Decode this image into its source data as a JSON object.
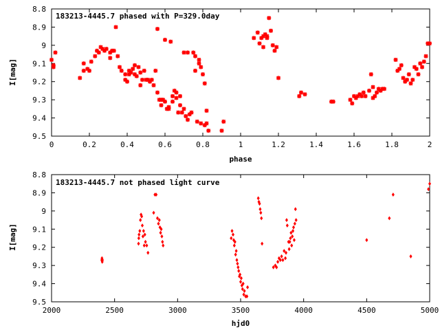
{
  "colors": {
    "points": "#ff0000",
    "frame": "#000000",
    "background": "#ffffff"
  },
  "chart_data": [
    {
      "type": "scatter",
      "title": "183213-4445.7 phased with P=329.0day",
      "xlabel": "phase",
      "ylabel": "I[mag]",
      "xlim": [
        0,
        2
      ],
      "ylim": [
        8.8,
        9.5
      ],
      "y_inverted": true,
      "grid": false,
      "marker": "star",
      "xticks": [
        "0",
        "0.2",
        "0.4",
        "0.6",
        "0.8",
        "1",
        "1.2",
        "1.4",
        "1.6",
        "1.8",
        "2"
      ],
      "yticks": [
        "8.8",
        "8.9",
        "9",
        "9.1",
        "9.2",
        "9.3",
        "9.4",
        "9.5"
      ],
      "points": [
        [
          0.0,
          9.08
        ],
        [
          0.01,
          9.12
        ],
        [
          0.01,
          9.11
        ],
        [
          0.02,
          9.04
        ],
        [
          0.15,
          9.18
        ],
        [
          0.17,
          9.1
        ],
        [
          0.17,
          9.14
        ],
        [
          0.19,
          9.13
        ],
        [
          0.2,
          9.14
        ],
        [
          0.21,
          9.09
        ],
        [
          0.23,
          9.06
        ],
        [
          0.24,
          9.03
        ],
        [
          0.25,
          9.04
        ],
        [
          0.26,
          9.01
        ],
        [
          0.27,
          9.02
        ],
        [
          0.28,
          9.03
        ],
        [
          0.29,
          9.02
        ],
        [
          0.31,
          9.04
        ],
        [
          0.31,
          9.07
        ],
        [
          0.32,
          9.03
        ],
        [
          0.33,
          9.03
        ],
        [
          0.34,
          8.9
        ],
        [
          0.35,
          9.06
        ],
        [
          0.36,
          9.12
        ],
        [
          0.37,
          9.14
        ],
        [
          0.39,
          9.16
        ],
        [
          0.39,
          9.19
        ],
        [
          0.4,
          9.2
        ],
        [
          0.41,
          9.16
        ],
        [
          0.41,
          9.14
        ],
        [
          0.42,
          9.15
        ],
        [
          0.43,
          9.13
        ],
        [
          0.44,
          9.16
        ],
        [
          0.44,
          9.11
        ],
        [
          0.45,
          9.17
        ],
        [
          0.46,
          9.12
        ],
        [
          0.47,
          9.22
        ],
        [
          0.47,
          9.15
        ],
        [
          0.48,
          9.19
        ],
        [
          0.49,
          9.14
        ],
        [
          0.5,
          9.19
        ],
        [
          0.51,
          9.19
        ],
        [
          0.52,
          9.2
        ],
        [
          0.53,
          9.19
        ],
        [
          0.54,
          9.22
        ],
        [
          0.55,
          9.14
        ],
        [
          0.56,
          8.91
        ],
        [
          0.56,
          9.26
        ],
        [
          0.57,
          9.3
        ],
        [
          0.58,
          9.33
        ],
        [
          0.58,
          9.3
        ],
        [
          0.59,
          9.3
        ],
        [
          0.6,
          8.97
        ],
        [
          0.6,
          9.31
        ],
        [
          0.61,
          9.35
        ],
        [
          0.62,
          9.34
        ],
        [
          0.62,
          9.35
        ],
        [
          0.63,
          8.98
        ],
        [
          0.64,
          9.28
        ],
        [
          0.64,
          9.31
        ],
        [
          0.65,
          9.25
        ],
        [
          0.66,
          9.29
        ],
        [
          0.66,
          9.26
        ],
        [
          0.67,
          9.37
        ],
        [
          0.68,
          9.28
        ],
        [
          0.68,
          9.33
        ],
        [
          0.69,
          9.37
        ],
        [
          0.7,
          9.04
        ],
        [
          0.7,
          9.35
        ],
        [
          0.71,
          9.39
        ],
        [
          0.72,
          9.04
        ],
        [
          0.72,
          9.41
        ],
        [
          0.73,
          9.38
        ],
        [
          0.74,
          9.37
        ],
        [
          0.75,
          9.04
        ],
        [
          0.76,
          9.14
        ],
        [
          0.76,
          9.06
        ],
        [
          0.77,
          9.42
        ],
        [
          0.78,
          9.08
        ],
        [
          0.78,
          9.1
        ],
        [
          0.79,
          9.43
        ],
        [
          0.79,
          9.12
        ],
        [
          0.8,
          9.16
        ],
        [
          0.81,
          9.21
        ],
        [
          0.81,
          9.44
        ],
        [
          0.82,
          9.36
        ],
        [
          0.82,
          9.43
        ],
        [
          0.83,
          9.47
        ],
        [
          0.9,
          9.47
        ],
        [
          0.91,
          9.42
        ],
        [
          1.07,
          8.96
        ],
        [
          1.09,
          8.93
        ],
        [
          1.1,
          8.99
        ],
        [
          1.11,
          8.96
        ],
        [
          1.12,
          8.95
        ],
        [
          1.12,
          9.01
        ],
        [
          1.13,
          8.94
        ],
        [
          1.14,
          8.95
        ],
        [
          1.14,
          8.96
        ],
        [
          1.15,
          8.85
        ],
        [
          1.16,
          8.92
        ],
        [
          1.17,
          9.0
        ],
        [
          1.18,
          9.03
        ],
        [
          1.19,
          9.01
        ],
        [
          1.2,
          9.18
        ],
        [
          1.31,
          9.28
        ],
        [
          1.32,
          9.26
        ],
        [
          1.34,
          9.27
        ],
        [
          1.48,
          9.31
        ],
        [
          1.49,
          9.31
        ],
        [
          1.58,
          9.3
        ],
        [
          1.59,
          9.32
        ],
        [
          1.6,
          9.28
        ],
        [
          1.61,
          9.29
        ],
        [
          1.62,
          9.28
        ],
        [
          1.63,
          9.27
        ],
        [
          1.64,
          9.28
        ],
        [
          1.65,
          9.26
        ],
        [
          1.66,
          9.28
        ],
        [
          1.68,
          9.25
        ],
        [
          1.69,
          9.16
        ],
        [
          1.7,
          9.29
        ],
        [
          1.7,
          9.23
        ],
        [
          1.71,
          9.28
        ],
        [
          1.72,
          9.26
        ],
        [
          1.73,
          9.24
        ],
        [
          1.74,
          9.25
        ],
        [
          1.75,
          9.24
        ],
        [
          1.76,
          9.24
        ],
        [
          1.82,
          9.08
        ],
        [
          1.83,
          9.14
        ],
        [
          1.84,
          9.13
        ],
        [
          1.85,
          9.11
        ],
        [
          1.86,
          9.18
        ],
        [
          1.87,
          9.2
        ],
        [
          1.88,
          9.19
        ],
        [
          1.89,
          9.16
        ],
        [
          1.9,
          9.21
        ],
        [
          1.91,
          9.19
        ],
        [
          1.92,
          9.12
        ],
        [
          1.93,
          9.13
        ],
        [
          1.94,
          9.16
        ],
        [
          1.95,
          9.1
        ],
        [
          1.96,
          9.12
        ],
        [
          1.97,
          9.09
        ],
        [
          1.98,
          9.06
        ],
        [
          1.99,
          8.99
        ],
        [
          2.0,
          8.99
        ]
      ]
    },
    {
      "type": "scatter",
      "title": "183213-4445.7 not phased light curve",
      "xlabel": "hjd0",
      "ylabel": "I[mag]",
      "xlim": [
        2000,
        5000
      ],
      "ylim": [
        8.8,
        9.5
      ],
      "y_inverted": true,
      "grid": false,
      "marker": "diamond",
      "xticks": [
        "2000",
        "2500",
        "3000",
        "3500",
        "4000",
        "4500",
        "5000"
      ],
      "yticks": [
        "8.8",
        "8.9",
        "9",
        "9.1",
        "9.2",
        "9.3",
        "9.4",
        "9.5"
      ],
      "points": [
        [
          2398,
          9.27
        ],
        [
          2400,
          9.26
        ],
        [
          2402,
          9.28
        ],
        [
          2404,
          9.27
        ],
        [
          2690,
          9.18
        ],
        [
          2692,
          9.15
        ],
        [
          2694,
          9.13
        ],
        [
          2700,
          9.11
        ],
        [
          2705,
          9.05
        ],
        [
          2710,
          9.02
        ],
        [
          2715,
          9.03
        ],
        [
          2720,
          9.08
        ],
        [
          2725,
          9.14
        ],
        [
          2730,
          9.11
        ],
        [
          2735,
          9.19
        ],
        [
          2740,
          9.13
        ],
        [
          2745,
          9.17
        ],
        [
          2755,
          9.19
        ],
        [
          2765,
          9.23
        ],
        [
          2810,
          9.01
        ],
        [
          2820,
          8.91
        ],
        [
          2830,
          8.91
        ],
        [
          2840,
          9.04
        ],
        [
          2848,
          9.07
        ],
        [
          2855,
          9.05
        ],
        [
          2860,
          9.09
        ],
        [
          2865,
          9.12
        ],
        [
          2870,
          9.1
        ],
        [
          2875,
          9.14
        ],
        [
          2880,
          9.17
        ],
        [
          2885,
          9.19
        ],
        [
          3425,
          9.15
        ],
        [
          3432,
          9.11
        ],
        [
          3440,
          9.13
        ],
        [
          3445,
          9.16
        ],
        [
          3450,
          9.19
        ],
        [
          3455,
          9.17
        ],
        [
          3460,
          9.24
        ],
        [
          3465,
          9.22
        ],
        [
          3470,
          9.27
        ],
        [
          3475,
          9.29
        ],
        [
          3480,
          9.31
        ],
        [
          3485,
          9.33
        ],
        [
          3490,
          9.36
        ],
        [
          3495,
          9.35
        ],
        [
          3500,
          9.39
        ],
        [
          3505,
          9.37
        ],
        [
          3510,
          9.41
        ],
        [
          3515,
          9.43
        ],
        [
          3520,
          9.4
        ],
        [
          3525,
          9.46
        ],
        [
          3530,
          9.44
        ],
        [
          3540,
          9.47
        ],
        [
          3550,
          9.47
        ],
        [
          3555,
          9.42
        ],
        [
          3640,
          8.93
        ],
        [
          3645,
          8.95
        ],
        [
          3650,
          8.96
        ],
        [
          3655,
          8.99
        ],
        [
          3660,
          9.01
        ],
        [
          3665,
          9.04
        ],
        [
          3670,
          9.18
        ],
        [
          3760,
          9.31
        ],
        [
          3775,
          9.3
        ],
        [
          3785,
          9.31
        ],
        [
          3795,
          9.28
        ],
        [
          3805,
          9.26
        ],
        [
          3815,
          9.27
        ],
        [
          3825,
          9.25
        ],
        [
          3835,
          9.27
        ],
        [
          3845,
          9.22
        ],
        [
          3855,
          9.26
        ],
        [
          3860,
          9.23
        ],
        [
          3865,
          9.05
        ],
        [
          3870,
          9.08
        ],
        [
          3880,
          9.17
        ],
        [
          3885,
          9.21
        ],
        [
          3890,
          9.17
        ],
        [
          3895,
          9.15
        ],
        [
          3900,
          9.12
        ],
        [
          3905,
          9.19
        ],
        [
          3910,
          9.14
        ],
        [
          3915,
          9.11
        ],
        [
          3920,
          9.09
        ],
        [
          3925,
          9.16
        ],
        [
          3930,
          9.07
        ],
        [
          3935,
          8.99
        ],
        [
          3940,
          9.05
        ],
        [
          4500,
          9.16
        ],
        [
          4680,
          9.04
        ],
        [
          4710,
          8.91
        ],
        [
          4850,
          9.25
        ],
        [
          4990,
          8.88
        ],
        [
          5000,
          8.85
        ]
      ]
    }
  ]
}
